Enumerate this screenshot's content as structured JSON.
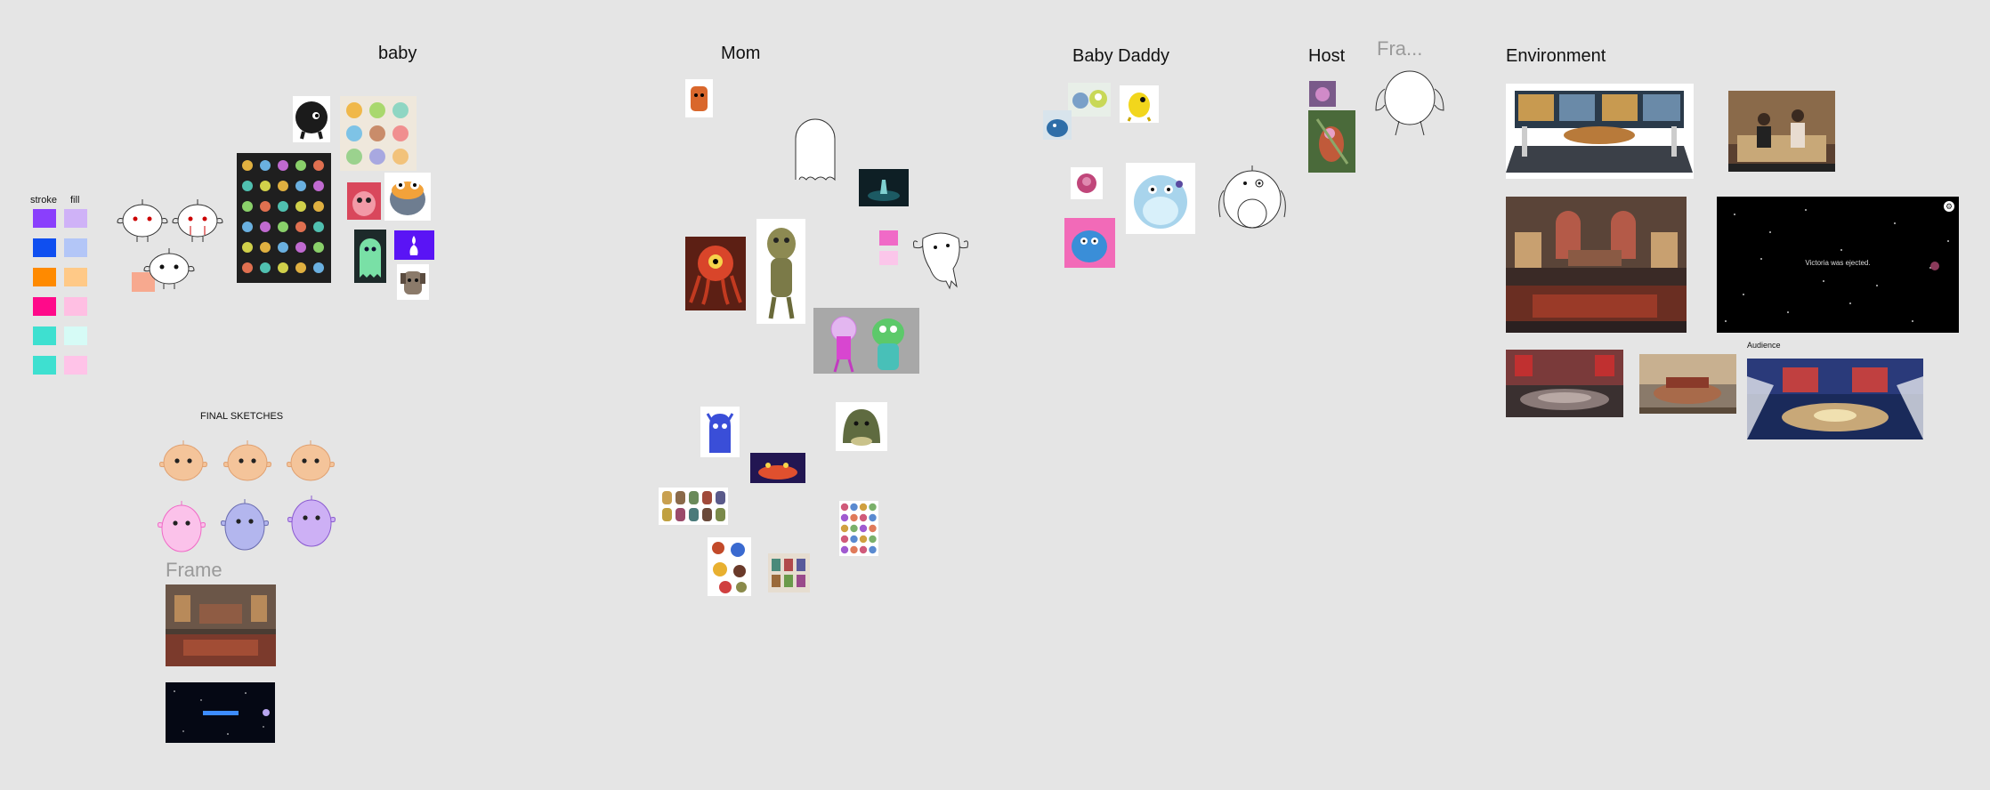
{
  "canvas": {
    "background": "#e5e5e5",
    "headings": {
      "baby": "baby",
      "mom": "Mom",
      "baby_daddy": "Baby Daddy",
      "host": "Host",
      "environment": "Environment",
      "final_sketches": "FINAL SKETCHES",
      "audience": "Audience"
    },
    "frame_labels": {
      "frame_1": "Fra...",
      "frame_2": "Frame"
    },
    "palette": {
      "stroke_label": "stroke",
      "fill_label": "fill",
      "rows": [
        {
          "stroke": "#8a3ffc",
          "fill": "#cfb2f7"
        },
        {
          "stroke": "#0f4ff0",
          "fill": "#b3c6f7"
        },
        {
          "stroke": "#ff8a00",
          "fill": "#ffc987"
        },
        {
          "stroke": "#ff0a8a",
          "fill": "#ffbfe3"
        },
        {
          "stroke": "#3ee0d0",
          "fill": "#d6fbf6"
        },
        {
          "stroke": "#3ee0d0",
          "fill": "#ffc3e8"
        }
      ]
    },
    "environment_overlay_text": "Victoria was ejected.",
    "accent_pink": "#f06ac7",
    "accent_pink_light": "#fbc6ea",
    "accent_salmon": "#f7a98f"
  }
}
